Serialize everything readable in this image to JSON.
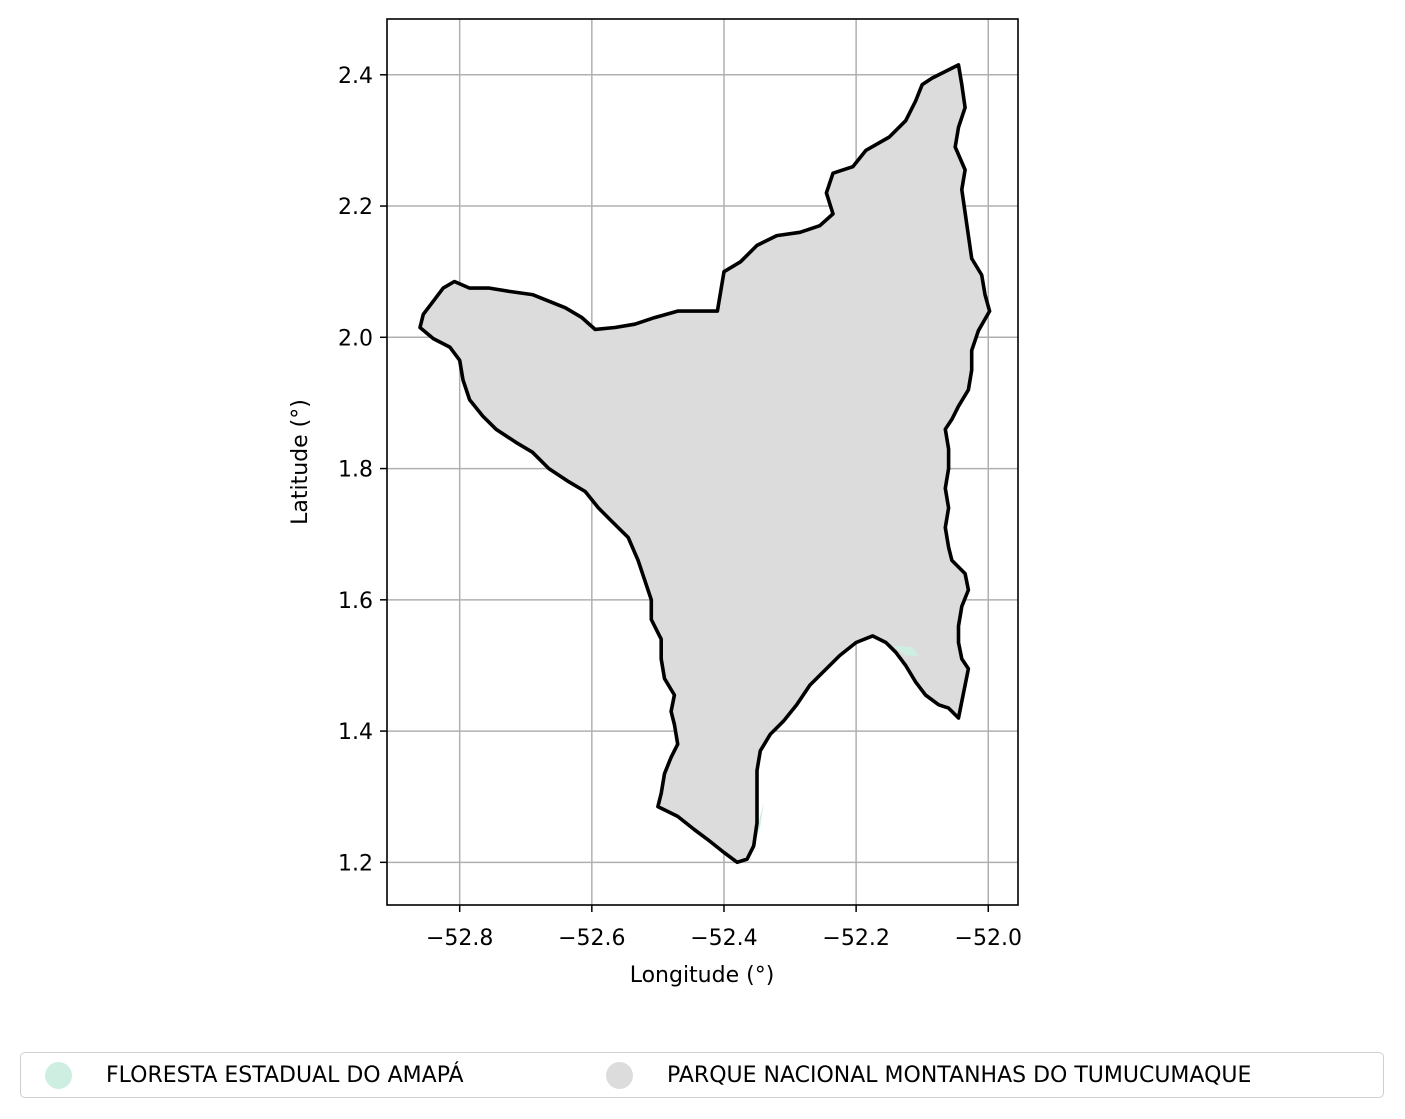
{
  "map": {
    "xlabel": "Longitude (°)",
    "ylabel": "Latitude (°)",
    "x_ticks": [
      "−52.8",
      "−52.6",
      "−52.4",
      "−52.2",
      "−52.0"
    ],
    "y_ticks": [
      "2.4",
      "2.2",
      "2.0",
      "1.8",
      "1.6",
      "1.4",
      "1.2"
    ],
    "xlim": [
      -52.91,
      -51.955
    ],
    "ylim": [
      1.135,
      2.485
    ],
    "grid": true,
    "colors": {
      "park_fill": "#dcdcdc",
      "forest_fill": "#cdeee0",
      "outline": "#000000",
      "grid": "#b0b0b0"
    }
  },
  "chart_data": {
    "type": "map",
    "x_tick_values": [
      -52.8,
      -52.6,
      -52.4,
      -52.2,
      -52.0
    ],
    "y_tick_values": [
      2.4,
      2.2,
      2.0,
      1.8,
      1.6,
      1.4,
      1.2
    ],
    "regions": [
      {
        "name": "PARQUE NACIONAL MONTANHAS DO TUMUCUMAQUE",
        "outline_lonlat": [
          [
            -52.855,
            2.035
          ],
          [
            -52.84,
            2.055
          ],
          [
            -52.825,
            2.075
          ],
          [
            -52.808,
            2.085
          ],
          [
            -52.785,
            2.075
          ],
          [
            -52.755,
            2.075
          ],
          [
            -52.725,
            2.07
          ],
          [
            -52.69,
            2.065
          ],
          [
            -52.665,
            2.055
          ],
          [
            -52.64,
            2.045
          ],
          [
            -52.615,
            2.03
          ],
          [
            -52.595,
            2.012
          ],
          [
            -52.565,
            2.015
          ],
          [
            -52.535,
            2.02
          ],
          [
            -52.505,
            2.03
          ],
          [
            -52.47,
            2.04
          ],
          [
            -52.44,
            2.04
          ],
          [
            -52.41,
            2.04
          ],
          [
            -52.405,
            2.07
          ],
          [
            -52.4,
            2.1
          ],
          [
            -52.375,
            2.115
          ],
          [
            -52.35,
            2.14
          ],
          [
            -52.32,
            2.155
          ],
          [
            -52.285,
            2.16
          ],
          [
            -52.255,
            2.17
          ],
          [
            -52.235,
            2.188
          ],
          [
            -52.245,
            2.22
          ],
          [
            -52.235,
            2.25
          ],
          [
            -52.205,
            2.26
          ],
          [
            -52.185,
            2.285
          ],
          [
            -52.15,
            2.305
          ],
          [
            -52.125,
            2.33
          ],
          [
            -52.11,
            2.36
          ],
          [
            -52.1,
            2.385
          ],
          [
            -52.085,
            2.395
          ],
          [
            -52.065,
            2.405
          ],
          [
            -52.045,
            2.415
          ],
          [
            -52.04,
            2.385
          ],
          [
            -52.035,
            2.35
          ],
          [
            -52.045,
            2.32
          ],
          [
            -52.05,
            2.29
          ],
          [
            -52.035,
            2.255
          ],
          [
            -52.04,
            2.225
          ],
          [
            -52.035,
            2.19
          ],
          [
            -52.03,
            2.155
          ],
          [
            -52.025,
            2.12
          ],
          [
            -52.01,
            2.095
          ],
          [
            -52.005,
            2.065
          ],
          [
            -51.998,
            2.04
          ],
          [
            -52.015,
            2.01
          ],
          [
            -52.025,
            1.98
          ],
          [
            -52.025,
            1.95
          ],
          [
            -52.03,
            1.92
          ],
          [
            -52.045,
            1.895
          ],
          [
            -52.055,
            1.875
          ],
          [
            -52.065,
            1.86
          ],
          [
            -52.06,
            1.83
          ],
          [
            -52.06,
            1.8
          ],
          [
            -52.065,
            1.77
          ],
          [
            -52.06,
            1.74
          ],
          [
            -52.065,
            1.71
          ],
          [
            -52.06,
            1.68
          ],
          [
            -52.055,
            1.66
          ],
          [
            -52.035,
            1.64
          ],
          [
            -52.03,
            1.615
          ],
          [
            -52.04,
            1.59
          ],
          [
            -52.045,
            1.56
          ],
          [
            -52.045,
            1.535
          ],
          [
            -52.04,
            1.51
          ],
          [
            -52.03,
            1.495
          ],
          [
            -52.035,
            1.47
          ],
          [
            -52.04,
            1.445
          ],
          [
            -52.045,
            1.42
          ],
          [
            -52.06,
            1.435
          ],
          [
            -52.075,
            1.44
          ],
          [
            -52.095,
            1.455
          ],
          [
            -52.11,
            1.475
          ],
          [
            -52.125,
            1.5
          ],
          [
            -52.14,
            1.52
          ],
          [
            -52.155,
            1.535
          ],
          [
            -52.175,
            1.545
          ],
          [
            -52.2,
            1.535
          ],
          [
            -52.225,
            1.515
          ],
          [
            -52.25,
            1.49
          ],
          [
            -52.27,
            1.47
          ],
          [
            -52.29,
            1.44
          ],
          [
            -52.31,
            1.415
          ],
          [
            -52.33,
            1.395
          ],
          [
            -52.345,
            1.37
          ],
          [
            -52.35,
            1.34
          ],
          [
            -52.35,
            1.3
          ],
          [
            -52.35,
            1.26
          ],
          [
            -52.355,
            1.225
          ],
          [
            -52.365,
            1.205
          ],
          [
            -52.38,
            1.2
          ],
          [
            -52.4,
            1.215
          ],
          [
            -52.425,
            1.235
          ],
          [
            -52.445,
            1.25
          ],
          [
            -52.47,
            1.27
          ],
          [
            -52.5,
            1.285
          ],
          [
            -52.495,
            1.305
          ],
          [
            -52.49,
            1.335
          ],
          [
            -52.48,
            1.36
          ],
          [
            -52.47,
            1.38
          ],
          [
            -52.475,
            1.41
          ],
          [
            -52.48,
            1.43
          ],
          [
            -52.475,
            1.455
          ],
          [
            -52.49,
            1.48
          ],
          [
            -52.495,
            1.51
          ],
          [
            -52.495,
            1.54
          ],
          [
            -52.51,
            1.57
          ],
          [
            -52.51,
            1.6
          ],
          [
            -52.52,
            1.63
          ],
          [
            -52.53,
            1.66
          ],
          [
            -52.545,
            1.695
          ],
          [
            -52.57,
            1.72
          ],
          [
            -52.59,
            1.74
          ],
          [
            -52.61,
            1.765
          ],
          [
            -52.635,
            1.78
          ],
          [
            -52.665,
            1.8
          ],
          [
            -52.69,
            1.825
          ],
          [
            -52.715,
            1.84
          ],
          [
            -52.745,
            1.86
          ],
          [
            -52.765,
            1.88
          ],
          [
            -52.785,
            1.905
          ],
          [
            -52.795,
            1.935
          ],
          [
            -52.8,
            1.965
          ],
          [
            -52.815,
            1.985
          ],
          [
            -52.84,
            1.998
          ],
          [
            -52.86,
            2.015
          ]
        ]
      },
      {
        "name": "FLORESTA ESTADUAL DO AMAPÁ",
        "fragments_lonlat": [
          [
            [
              -52.145,
              1.53
            ],
            [
              -52.115,
              1.528
            ],
            [
              -52.105,
              1.515
            ],
            [
              -52.125,
              1.515
            ],
            [
              -52.145,
              1.53
            ]
          ],
          [
            [
              -52.355,
              1.225
            ],
            [
              -52.345,
              1.255
            ],
            [
              -52.34,
              1.29
            ],
            [
              -52.348,
              1.26
            ],
            [
              -52.355,
              1.225
            ]
          ]
        ]
      }
    ]
  },
  "legend": {
    "items": [
      {
        "label": "FLORESTA ESTADUAL DO AMAPÁ",
        "color": "#cdeee0"
      },
      {
        "label": "PARQUE NACIONAL MONTANHAS DO TUMUCUMAQUE",
        "color": "#dcdcdc"
      }
    ]
  }
}
